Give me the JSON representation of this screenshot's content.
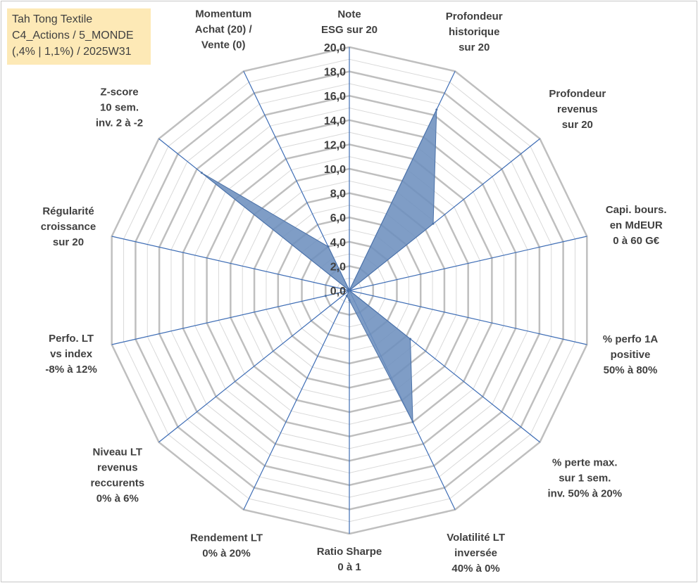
{
  "title_lines": [
    "Tah Tong Textile",
    "C4_Actions / 5_MONDE",
    "(,4% | 1,1%) / 2025W31"
  ],
  "chart_data": {
    "type": "radar",
    "r_min": 0,
    "r_max": 20,
    "r_step": 2,
    "minor_step": 1,
    "tick_labels": [
      "0,0",
      "2,0",
      "4,0",
      "6,0",
      "8,0",
      "10,0",
      "12,0",
      "14,0",
      "16,0",
      "18,0",
      "20,0"
    ],
    "axes": [
      {
        "label_lines": [
          "Note",
          "ESG sur 20"
        ],
        "value": 0
      },
      {
        "label_lines": [
          "Profondeur",
          "historique",
          "sur 20"
        ],
        "value": 16.5
      },
      {
        "label_lines": [
          "Profondeur",
          "revenus",
          "sur 20"
        ],
        "value": 8.8
      },
      {
        "label_lines": [
          "Capi. bours.",
          "en MdEUR",
          "0 à 60 G€"
        ],
        "value": 0
      },
      {
        "label_lines": [
          "% perfo 1A",
          "positive",
          "50% à 80%"
        ],
        "value": 0
      },
      {
        "label_lines": [
          "% perte max.",
          "sur 1 sem.",
          "inv. 50% à 20%"
        ],
        "value": 6.4
      },
      {
        "label_lines": [
          "Volatilité LT",
          "inversée",
          "40% à 0%"
        ],
        "value": 12
      },
      {
        "label_lines": [
          "Ratio Sharpe",
          "0 à 1"
        ],
        "value": 0.8
      },
      {
        "label_lines": [
          "Rendement LT",
          "0% à 20%"
        ],
        "value": 0.5
      },
      {
        "label_lines": [
          "Niveau LT",
          "revenus",
          "reccurents",
          "0% à 6%"
        ],
        "value": 0
      },
      {
        "label_lines": [
          "Perfo. LT",
          "vs index",
          "-8% à 12%"
        ],
        "value": 2.0
      },
      {
        "label_lines": [
          "Régularité",
          "croissance",
          "sur 20"
        ],
        "value": 0
      },
      {
        "label_lines": [
          "Z-score",
          "10 sem.",
          "inv. 2 à -2"
        ],
        "value": 15.5
      },
      {
        "label_lines": [
          "Momentum",
          "Achat (20) /",
          "Vente (0)"
        ],
        "value": 4.0
      }
    ],
    "colors": {
      "fill": "#6d8fbe",
      "stroke": "#4c72a8",
      "spoke": "#3e6db5",
      "grid_major": "#bfbfbf",
      "grid_minor": "#d9d9d9"
    },
    "legend": "none"
  }
}
